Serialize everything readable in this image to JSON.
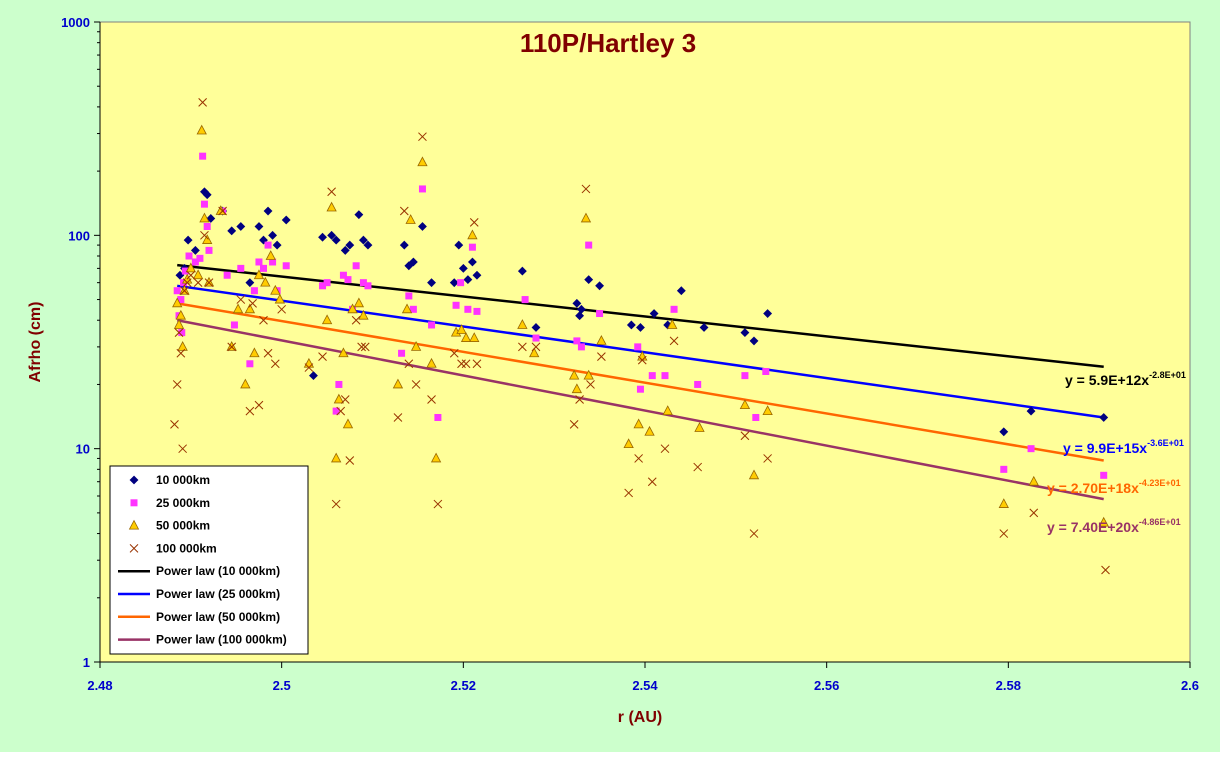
{
  "chart_data": {
    "type": "scatter",
    "title": "110P/Hartley 3",
    "xlabel": "r (AU)",
    "ylabel": "Afrho (cm)",
    "x_ticks": [
      "2.48",
      "2.5",
      "2.52",
      "2.54",
      "2.56",
      "2.58",
      "2.6"
    ],
    "y_ticks": [
      "1",
      "10",
      "100",
      "1000"
    ],
    "xlim": [
      2.48,
      2.6
    ],
    "ylim": [
      1,
      1000
    ],
    "y_scale": "log",
    "grid": false,
    "legend_position": "bottom-left",
    "colors": {
      "background": "#ffff99",
      "page": "#ccffcc",
      "s10k": "#000080",
      "s25k": "#ff33ff",
      "s50k": "#ffcc00",
      "s100k": "#993300",
      "fit10k": "#000000",
      "fit25k": "#0000ff",
      "fit50k": "#ff6600",
      "fit100k": "#993366",
      "eq10k": "#000000",
      "eq25k": "#0000ff",
      "eq50k": "#ff6600",
      "eq100k": "#993366"
    },
    "series": [
      {
        "name": "10 000km",
        "marker": "diamond",
        "color": "#000080",
        "points": [
          [
            2.4888,
            65
          ],
          [
            2.4893,
            70
          ],
          [
            2.4897,
            95
          ],
          [
            2.4905,
            85
          ],
          [
            2.4915,
            160
          ],
          [
            2.4918,
            155
          ],
          [
            2.4922,
            120
          ],
          [
            2.4935,
            130
          ],
          [
            2.4945,
            105
          ],
          [
            2.4955,
            110
          ],
          [
            2.4965,
            60
          ],
          [
            2.4975,
            110
          ],
          [
            2.498,
            95
          ],
          [
            2.4985,
            130
          ],
          [
            2.499,
            100
          ],
          [
            2.4995,
            90
          ],
          [
            2.5005,
            118
          ],
          [
            2.5035,
            22
          ],
          [
            2.5045,
            98
          ],
          [
            2.5055,
            100
          ],
          [
            2.506,
            95
          ],
          [
            2.507,
            85
          ],
          [
            2.5075,
            90
          ],
          [
            2.5085,
            125
          ],
          [
            2.509,
            95
          ],
          [
            2.5095,
            90
          ],
          [
            2.5135,
            90
          ],
          [
            2.514,
            72
          ],
          [
            2.5145,
            75
          ],
          [
            2.5155,
            110
          ],
          [
            2.5165,
            60
          ],
          [
            2.519,
            60
          ],
          [
            2.5195,
            90
          ],
          [
            2.52,
            70
          ],
          [
            2.5205,
            62
          ],
          [
            2.521,
            75
          ],
          [
            2.5215,
            65
          ],
          [
            2.5265,
            68
          ],
          [
            2.528,
            37
          ],
          [
            2.5325,
            48
          ],
          [
            2.5328,
            42
          ],
          [
            2.533,
            45
          ],
          [
            2.5338,
            62
          ],
          [
            2.535,
            58
          ],
          [
            2.5385,
            38
          ],
          [
            2.5395,
            37
          ],
          [
            2.541,
            43
          ],
          [
            2.5425,
            38
          ],
          [
            2.544,
            55
          ],
          [
            2.5465,
            37
          ],
          [
            2.551,
            35
          ],
          [
            2.552,
            32
          ],
          [
            2.5535,
            43
          ],
          [
            2.5795,
            12
          ],
          [
            2.5825,
            15
          ],
          [
            2.5905,
            14
          ]
        ]
      },
      {
        "name": "25 000km",
        "marker": "square",
        "color": "#ff33ff",
        "points": [
          [
            2.4885,
            55
          ],
          [
            2.4887,
            42
          ],
          [
            2.4889,
            50
          ],
          [
            2.489,
            35
          ],
          [
            2.4892,
            60
          ],
          [
            2.4894,
            68
          ],
          [
            2.4898,
            80
          ],
          [
            2.4905,
            75
          ],
          [
            2.491,
            78
          ],
          [
            2.4913,
            235
          ],
          [
            2.4915,
            140
          ],
          [
            2.4918,
            110
          ],
          [
            2.492,
            85
          ],
          [
            2.4935,
            130
          ],
          [
            2.494,
            65
          ],
          [
            2.4948,
            38
          ],
          [
            2.4955,
            70
          ],
          [
            2.4965,
            25
          ],
          [
            2.497,
            55
          ],
          [
            2.4975,
            75
          ],
          [
            2.498,
            70
          ],
          [
            2.4985,
            90
          ],
          [
            2.499,
            75
          ],
          [
            2.4995,
            55
          ],
          [
            2.5005,
            72
          ],
          [
            2.5045,
            58
          ],
          [
            2.505,
            60
          ],
          [
            2.506,
            15
          ],
          [
            2.5063,
            20
          ],
          [
            2.5068,
            65
          ],
          [
            2.5073,
            62
          ],
          [
            2.5078,
            45
          ],
          [
            2.5082,
            72
          ],
          [
            2.509,
            60
          ],
          [
            2.5095,
            58
          ],
          [
            2.5132,
            28
          ],
          [
            2.514,
            52
          ],
          [
            2.5145,
            45
          ],
          [
            2.5155,
            165
          ],
          [
            2.5165,
            38
          ],
          [
            2.5172,
            14
          ],
          [
            2.5192,
            47
          ],
          [
            2.5197,
            60
          ],
          [
            2.5205,
            45
          ],
          [
            2.521,
            88
          ],
          [
            2.5215,
            44
          ],
          [
            2.5268,
            50
          ],
          [
            2.528,
            33
          ],
          [
            2.5325,
            32
          ],
          [
            2.533,
            30
          ],
          [
            2.5338,
            90
          ],
          [
            2.535,
            43
          ],
          [
            2.5392,
            30
          ],
          [
            2.5395,
            19
          ],
          [
            2.5408,
            22
          ],
          [
            2.5422,
            22
          ],
          [
            2.5432,
            45
          ],
          [
            2.5458,
            20
          ],
          [
            2.551,
            22
          ],
          [
            2.5522,
            14
          ],
          [
            2.5533,
            23
          ],
          [
            2.5795,
            8
          ],
          [
            2.5825,
            10
          ],
          [
            2.5905,
            7.5
          ]
        ]
      },
      {
        "name": "50 000km",
        "marker": "triangle",
        "color": "#ffcc00",
        "points": [
          [
            2.4885,
            48
          ],
          [
            2.4887,
            38
          ],
          [
            2.4889,
            42
          ],
          [
            2.4891,
            30
          ],
          [
            2.4893,
            55
          ],
          [
            2.4896,
            62
          ],
          [
            2.49,
            70
          ],
          [
            2.4908,
            65
          ],
          [
            2.4912,
            310
          ],
          [
            2.4915,
            120
          ],
          [
            2.4918,
            95
          ],
          [
            2.492,
            60
          ],
          [
            2.4933,
            130
          ],
          [
            2.4945,
            30
          ],
          [
            2.4952,
            45
          ],
          [
            2.496,
            20
          ],
          [
            2.4965,
            45
          ],
          [
            2.497,
            28
          ],
          [
            2.4975,
            65
          ],
          [
            2.4982,
            60
          ],
          [
            2.4988,
            80
          ],
          [
            2.4993,
            55
          ],
          [
            2.4998,
            50
          ],
          [
            2.503,
            25
          ],
          [
            2.505,
            40
          ],
          [
            2.5055,
            135
          ],
          [
            2.506,
            9
          ],
          [
            2.5063,
            17
          ],
          [
            2.5068,
            28
          ],
          [
            2.5073,
            13
          ],
          [
            2.5078,
            45
          ],
          [
            2.5085,
            48
          ],
          [
            2.509,
            42
          ],
          [
            2.5128,
            20
          ],
          [
            2.5138,
            45
          ],
          [
            2.5142,
            118
          ],
          [
            2.5148,
            30
          ],
          [
            2.5155,
            220
          ],
          [
            2.5165,
            25
          ],
          [
            2.517,
            9
          ],
          [
            2.5192,
            35
          ],
          [
            2.5198,
            36
          ],
          [
            2.5203,
            33
          ],
          [
            2.521,
            100
          ],
          [
            2.5212,
            33
          ],
          [
            2.5265,
            38
          ],
          [
            2.5278,
            28
          ],
          [
            2.5322,
            22
          ],
          [
            2.5325,
            19
          ],
          [
            2.5335,
            120
          ],
          [
            2.5338,
            22
          ],
          [
            2.5352,
            32
          ],
          [
            2.5382,
            10.5
          ],
          [
            2.5393,
            13
          ],
          [
            2.5397,
            27
          ],
          [
            2.5405,
            12
          ],
          [
            2.5425,
            15
          ],
          [
            2.543,
            38
          ],
          [
            2.546,
            12.5
          ],
          [
            2.551,
            16
          ],
          [
            2.552,
            7.5
          ],
          [
            2.5535,
            15
          ],
          [
            2.5795,
            5.5
          ],
          [
            2.5828,
            7
          ],
          [
            2.5905,
            4.5
          ]
        ]
      },
      {
        "name": "100 000km",
        "marker": "cross",
        "color": "#993300",
        "points": [
          [
            2.4882,
            13
          ],
          [
            2.4885,
            20
          ],
          [
            2.4887,
            35
          ],
          [
            2.4889,
            28
          ],
          [
            2.4891,
            10
          ],
          [
            2.4893,
            55
          ],
          [
            2.4896,
            60
          ],
          [
            2.49,
            65
          ],
          [
            2.4908,
            60
          ],
          [
            2.4913,
            420
          ],
          [
            2.4915,
            100
          ],
          [
            2.492,
            60
          ],
          [
            2.4935,
            130
          ],
          [
            2.4945,
            30
          ],
          [
            2.4955,
            50
          ],
          [
            2.4965,
            15
          ],
          [
            2.4968,
            48
          ],
          [
            2.4975,
            16
          ],
          [
            2.498,
            40
          ],
          [
            2.4985,
            28
          ],
          [
            2.4993,
            25
          ],
          [
            2.5,
            45
          ],
          [
            2.503,
            24
          ],
          [
            2.5045,
            27
          ],
          [
            2.5055,
            160
          ],
          [
            2.506,
            5.5
          ],
          [
            2.5065,
            15
          ],
          [
            2.507,
            17
          ],
          [
            2.5075,
            8.8
          ],
          [
            2.5082,
            40
          ],
          [
            2.5088,
            30
          ],
          [
            2.5092,
            30
          ],
          [
            2.5128,
            14
          ],
          [
            2.5135,
            130
          ],
          [
            2.514,
            25
          ],
          [
            2.5148,
            20
          ],
          [
            2.5155,
            290
          ],
          [
            2.5165,
            17
          ],
          [
            2.5172,
            5.5
          ],
          [
            2.519,
            28
          ],
          [
            2.5198,
            25
          ],
          [
            2.5203,
            25
          ],
          [
            2.5212,
            115
          ],
          [
            2.5215,
            25
          ],
          [
            2.5265,
            30
          ],
          [
            2.528,
            30
          ],
          [
            2.5322,
            13
          ],
          [
            2.5328,
            17
          ],
          [
            2.5335,
            165
          ],
          [
            2.534,
            20
          ],
          [
            2.5352,
            27
          ],
          [
            2.5382,
            6.2
          ],
          [
            2.5393,
            9
          ],
          [
            2.5397,
            26
          ],
          [
            2.5408,
            7
          ],
          [
            2.5422,
            10
          ],
          [
            2.5432,
            32
          ],
          [
            2.5458,
            8.2
          ],
          [
            2.551,
            11.5
          ],
          [
            2.552,
            4
          ],
          [
            2.5535,
            9
          ],
          [
            2.5795,
            4
          ],
          [
            2.5828,
            5
          ],
          [
            2.5907,
            2.7
          ]
        ]
      }
    ],
    "fits": [
      {
        "name": "Power law (10 000km)",
        "color": "#000000",
        "x_range": [
          2.4885,
          2.5905
        ],
        "y_range": [
          72.5,
          24.2
        ]
      },
      {
        "name": "Power law (25 000km)",
        "color": "#0000ff",
        "x_range": [
          2.4885,
          2.5905
        ],
        "y_range": [
          58,
          14
        ]
      },
      {
        "name": "Power law (50 000km)",
        "color": "#ff6600",
        "x_range": [
          2.4885,
          2.5905
        ],
        "y_range": [
          48,
          8.8
        ]
      },
      {
        "name": "Power law (100 000km)",
        "color": "#993366",
        "x_range": [
          2.4885,
          2.5905
        ],
        "y_range": [
          40,
          5.8
        ]
      }
    ],
    "equations": [
      {
        "text": "y = 5.9E+12x",
        "sup": "-2.8E+01",
        "color": "#000000"
      },
      {
        "text": "y = 9.9E+15x",
        "sup": "-3.6E+01",
        "color": "#0000ff"
      },
      {
        "text": "y = 2.70E+18x",
        "sup": "-4.23E+01",
        "color": "#ff6600"
      },
      {
        "text": "y = 7.40E+20x",
        "sup": "-4.86E+01",
        "color": "#993366"
      }
    ]
  }
}
